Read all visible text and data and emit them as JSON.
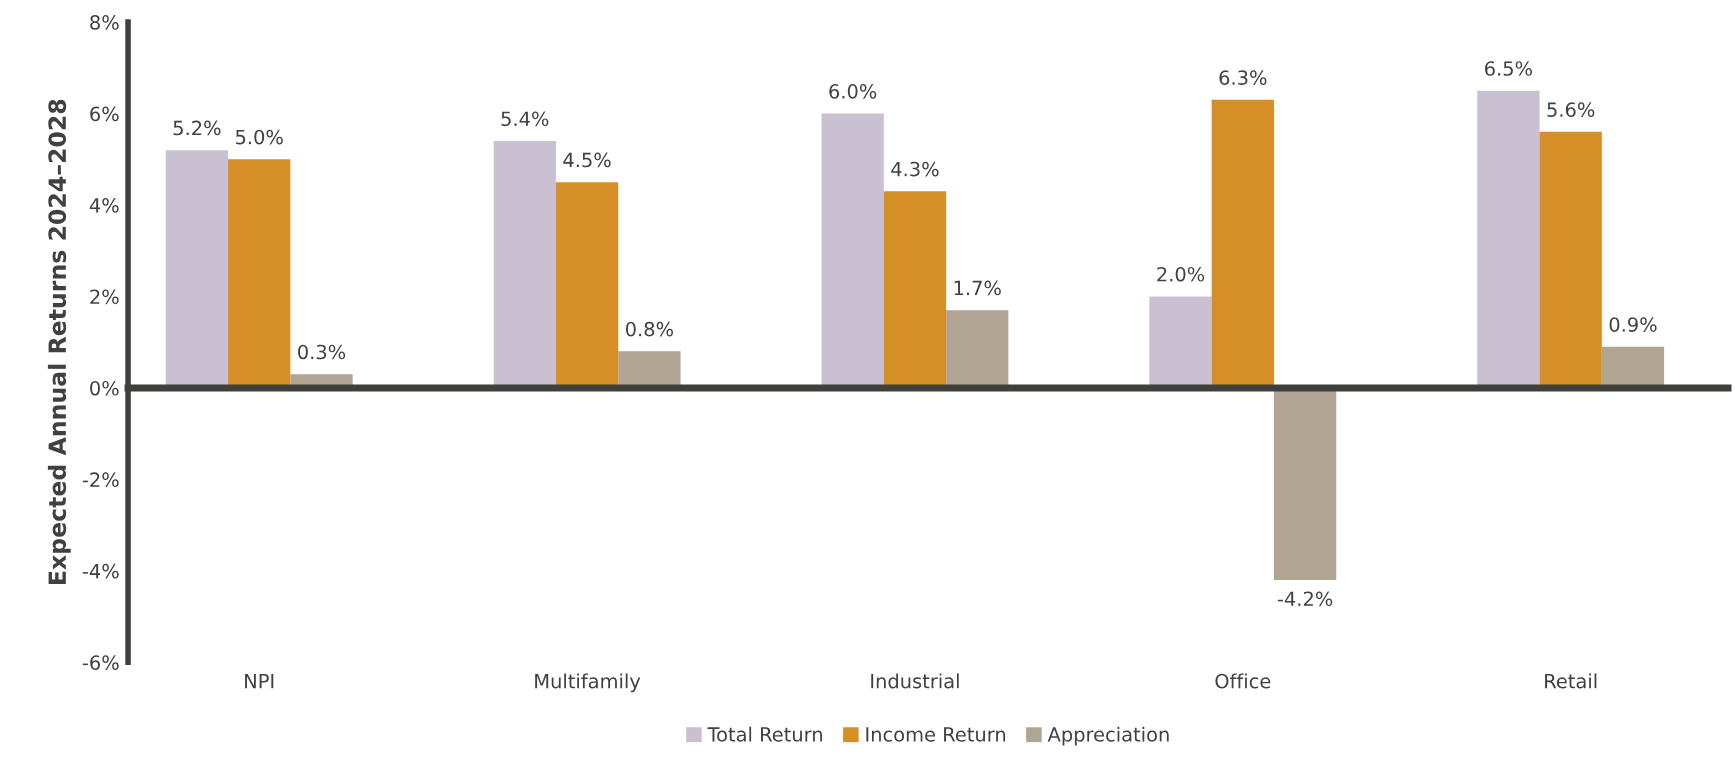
{
  "chart_data": {
    "type": "bar",
    "ylabel": "Expected Annual Returns 2024–2028",
    "categories": [
      "NPI",
      "Multifamily",
      "Industrial",
      "Office",
      "Retail"
    ],
    "series": [
      {
        "name": "Total Return",
        "color": "#c9c1d1",
        "values": [
          5.2,
          5.4,
          6.0,
          2.0,
          6.5
        ],
        "value_labels": [
          "5.2%",
          "5.4%",
          "6.0%",
          "2.0%",
          "6.5%"
        ]
      },
      {
        "name": "Income Return",
        "color": "#d68f27",
        "values": [
          5.0,
          4.5,
          4.3,
          6.3,
          5.6
        ],
        "value_labels": [
          "5.0%",
          "4.5%",
          "4.3%",
          "6.3%",
          "5.6%"
        ]
      },
      {
        "name": "Appreciation",
        "color": "#b0a593",
        "values": [
          0.3,
          0.8,
          1.7,
          -4.2,
          0.9
        ],
        "value_labels": [
          "0.3%",
          "0.8%",
          "1.7%",
          "-4.2%",
          "0.9%"
        ]
      }
    ],
    "ylim": [
      -6,
      8
    ],
    "yticks": [
      {
        "value": -6,
        "label": "-6%"
      },
      {
        "value": -4,
        "label": "-4%"
      },
      {
        "value": -2,
        "label": "-2%"
      },
      {
        "value": 0,
        "label": "0%"
      },
      {
        "value": 2,
        "label": "2%"
      },
      {
        "value": 4,
        "label": "4%"
      },
      {
        "value": 6,
        "label": "6%"
      },
      {
        "value": 8,
        "label": "8%"
      }
    ],
    "legend": "bottom"
  }
}
